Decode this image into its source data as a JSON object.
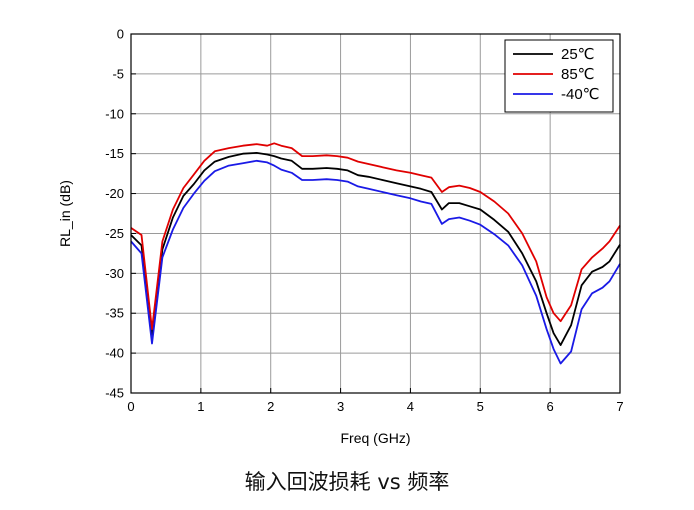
{
  "caption": "输入回波损耗 vs 频率",
  "chart_data": {
    "type": "line",
    "xlabel": "Freq (GHz)",
    "ylabel": "RL_in (dB)",
    "xlim": [
      0,
      7
    ],
    "ylim": [
      -45,
      0
    ],
    "xticks": [
      0,
      1,
      2,
      3,
      4,
      5,
      6,
      7
    ],
    "yticks": [
      0,
      -5,
      -10,
      -15,
      -20,
      -25,
      -30,
      -35,
      -40,
      -45
    ],
    "grid": true,
    "legend_position": "top-right",
    "x": [
      0,
      0.15,
      0.3,
      0.45,
      0.6,
      0.75,
      0.9,
      1.05,
      1.2,
      1.4,
      1.6,
      1.8,
      1.95,
      2.05,
      2.15,
      2.3,
      2.45,
      2.6,
      2.8,
      2.95,
      3.1,
      3.25,
      3.4,
      3.6,
      3.8,
      4.0,
      4.15,
      4.3,
      4.45,
      4.55,
      4.7,
      4.85,
      5.0,
      5.2,
      5.4,
      5.6,
      5.8,
      5.95,
      6.05,
      6.15,
      6.3,
      6.45,
      6.6,
      6.75,
      6.85,
      7.0
    ],
    "series": [
      {
        "name": "25℃",
        "color": "#000000",
        "values": [
          -25.2,
          -26.5,
          -38.0,
          -27.0,
          -23.0,
          -20.3,
          -18.8,
          -17.1,
          -16.0,
          -15.4,
          -15.0,
          -14.9,
          -15.1,
          -15.3,
          -15.6,
          -15.9,
          -16.9,
          -16.9,
          -16.8,
          -16.9,
          -17.1,
          -17.7,
          -17.9,
          -18.3,
          -18.7,
          -19.1,
          -19.4,
          -19.8,
          -22.0,
          -21.2,
          -21.2,
          -21.6,
          -22.0,
          -23.3,
          -24.8,
          -27.5,
          -31.0,
          -35.0,
          -37.5,
          -39.0,
          -36.5,
          -31.5,
          -29.8,
          -29.2,
          -28.5,
          -26.4
        ]
      },
      {
        "name": "85℃",
        "color": "#e00000",
        "values": [
          -24.3,
          -25.2,
          -37.0,
          -26.0,
          -22.0,
          -19.3,
          -17.6,
          -15.9,
          -14.7,
          -14.3,
          -14.0,
          -13.8,
          -14.0,
          -13.7,
          -14.0,
          -14.3,
          -15.3,
          -15.3,
          -15.2,
          -15.3,
          -15.5,
          -16.0,
          -16.3,
          -16.7,
          -17.1,
          -17.4,
          -17.7,
          -18.0,
          -19.8,
          -19.2,
          -19.0,
          -19.3,
          -19.8,
          -21.0,
          -22.5,
          -25.0,
          -28.5,
          -33.0,
          -35.0,
          -36.0,
          -34.0,
          -29.5,
          -28.0,
          -26.9,
          -26.0,
          -24.0
        ]
      },
      {
        "name": "-40℃",
        "color": "#1a1ae6",
        "values": [
          -26.0,
          -27.5,
          -38.8,
          -28.0,
          -24.5,
          -21.8,
          -20.0,
          -18.4,
          -17.2,
          -16.5,
          -16.2,
          -15.9,
          -16.1,
          -16.5,
          -17.0,
          -17.4,
          -18.3,
          -18.3,
          -18.2,
          -18.3,
          -18.5,
          -19.1,
          -19.4,
          -19.8,
          -20.2,
          -20.6,
          -21.0,
          -21.3,
          -23.8,
          -23.2,
          -23.0,
          -23.4,
          -23.9,
          -25.1,
          -26.5,
          -29.0,
          -32.8,
          -37.0,
          -39.5,
          -41.3,
          -39.8,
          -34.5,
          -32.5,
          -31.8,
          -31.0,
          -28.8
        ]
      }
    ]
  }
}
